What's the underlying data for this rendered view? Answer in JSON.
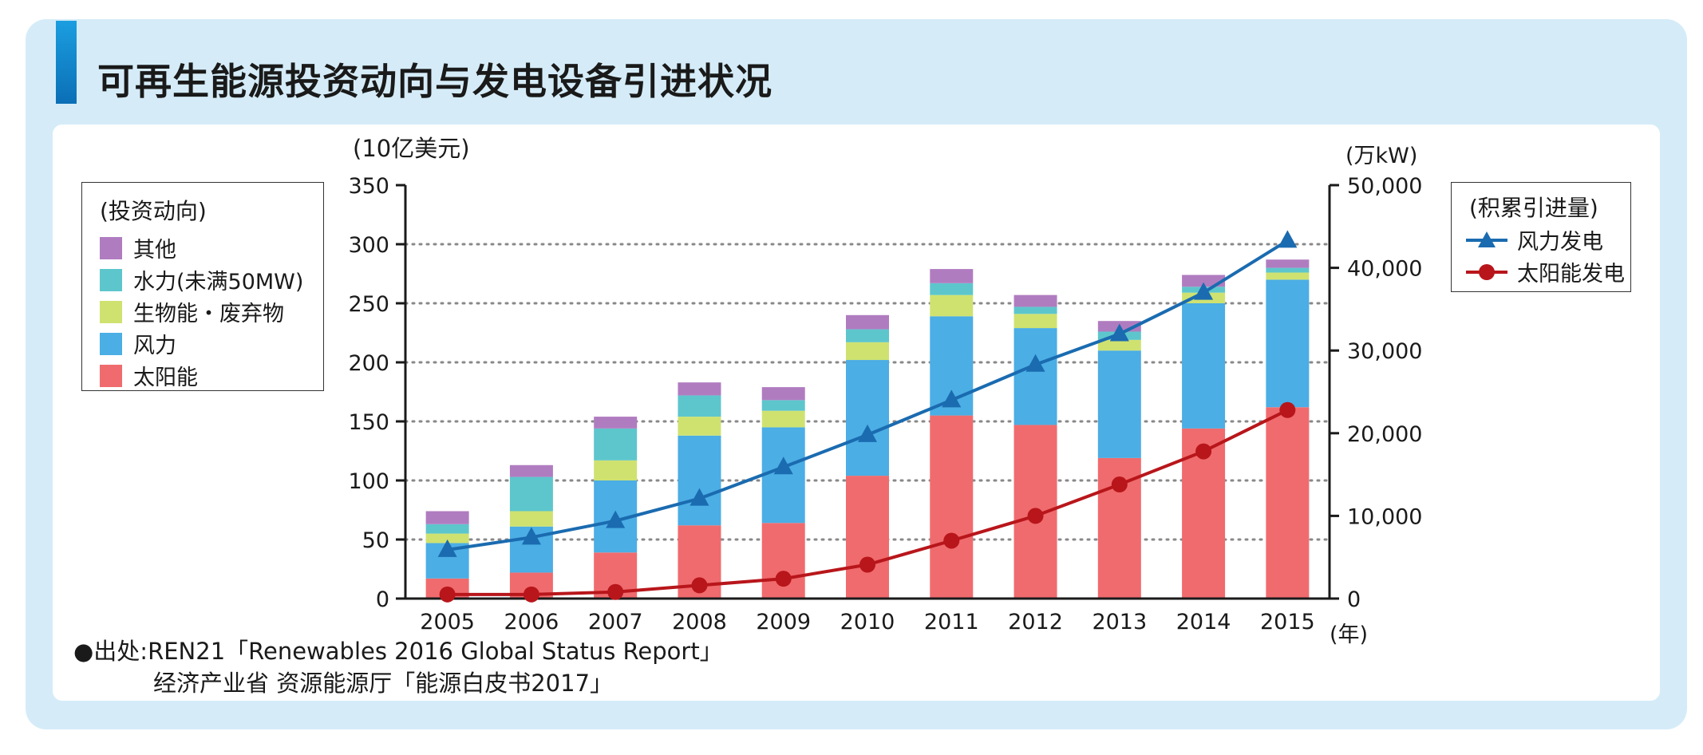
{
  "title": "可再生能源投资动向与发电设备引进状况",
  "legend_left": {
    "title": "(投资动向)",
    "items": [
      {
        "label": "其他",
        "color": "#b07cc0"
      },
      {
        "label": "水力(未满50MW)",
        "color": "#5dc6cc"
      },
      {
        "label": "生物能・废弃物",
        "color": "#cfe270"
      },
      {
        "label": "风力",
        "color": "#4baee4"
      },
      {
        "label": "太阳能",
        "color": "#f06b6e"
      }
    ]
  },
  "legend_right": {
    "title": "(积累引进量)",
    "items": [
      {
        "label": "风力发电",
        "color": "#1a6bb0",
        "marker": "triangle"
      },
      {
        "label": "太阳能发电",
        "color": "#b8161b",
        "marker": "circle"
      }
    ]
  },
  "source": {
    "line1": "●出处:REN21「Renewables 2016 Global Status Report」",
    "line2": "经济产业省 资源能源厅「能源白皮书2017」"
  },
  "chart_data": {
    "type": "bar",
    "stacked": true,
    "categories": [
      "2005",
      "2006",
      "2007",
      "2008",
      "2009",
      "2010",
      "2011",
      "2012",
      "2013",
      "2014",
      "2015"
    ],
    "xlabel": "(年)",
    "ylabel_left": "(10亿美元)",
    "ylabel_right": "(万kW)",
    "ylim_left": [
      0,
      350
    ],
    "ylim_right": [
      0,
      50000
    ],
    "yticks_left": [
      "0",
      "50",
      "100",
      "150",
      "200",
      "250",
      "300",
      "350"
    ],
    "yticks_right": [
      "0",
      "10,000",
      "20,000",
      "30,000",
      "40,000",
      "50,000"
    ],
    "grid": true,
    "series": [
      {
        "name": "太阳能",
        "color": "#f06b6e",
        "values": [
          17,
          22,
          39,
          62,
          64,
          104,
          155,
          147,
          119,
          144,
          162
        ]
      },
      {
        "name": "风力",
        "color": "#4baee4",
        "values": [
          30,
          39,
          61,
          76,
          81,
          98,
          84,
          82,
          91,
          106,
          108
        ]
      },
      {
        "name": "生物能・废弃物",
        "color": "#cfe270",
        "values": [
          8,
          13,
          17,
          16,
          14,
          15,
          18,
          12,
          9,
          9,
          6
        ]
      },
      {
        "name": "水力(未满50MW)",
        "color": "#5dc6cc",
        "values": [
          8,
          29,
          27,
          18,
          9,
          11,
          10,
          6,
          7,
          5,
          4
        ]
      },
      {
        "name": "其他",
        "color": "#b07cc0",
        "values": [
          11,
          10,
          10,
          11,
          11,
          12,
          12,
          10,
          9,
          10,
          7
        ]
      }
    ],
    "lines": [
      {
        "name": "风力发电",
        "axis": "right",
        "color": "#1a6bb0",
        "marker": "triangle",
        "values": [
          5900,
          7400,
          9400,
          12100,
          15900,
          19800,
          24000,
          28300,
          32000,
          37000,
          43300
        ]
      },
      {
        "name": "太阳能发电",
        "axis": "right",
        "color": "#b8161b",
        "marker": "circle",
        "values": [
          500,
          500,
          800,
          1600,
          2400,
          4100,
          7000,
          10000,
          13800,
          17800,
          22800
        ]
      }
    ]
  }
}
